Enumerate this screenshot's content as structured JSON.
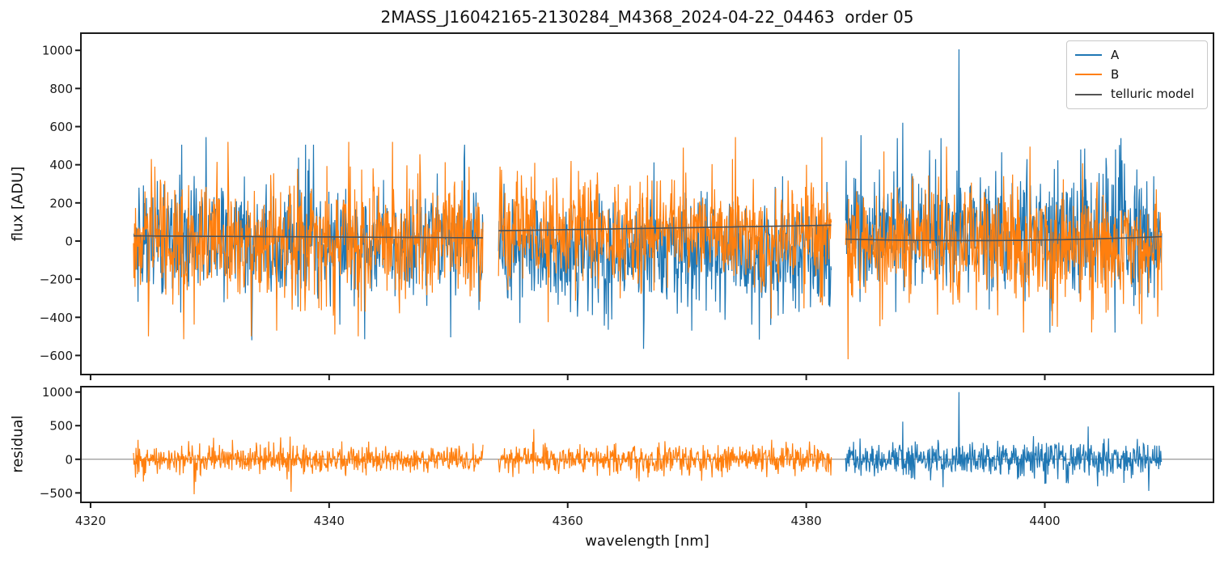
{
  "figure": {
    "background": "#ffffff"
  },
  "chart_data": {
    "type": "line",
    "title": "2MASS_J16042165-2130284_M4368_2024-04-22_04463  order 05",
    "xlabel": "wavelength [nm]",
    "xlim": [
      4319.19,
      4414.14
    ],
    "xticks": [
      {
        "v": 4320,
        "label": "4320"
      },
      {
        "v": 4340,
        "label": "4340"
      },
      {
        "v": 4360,
        "label": "4360"
      },
      {
        "v": 4380,
        "label": "4380"
      },
      {
        "v": 4400,
        "label": "4400"
      }
    ],
    "colors": {
      "A": "#1f77b4",
      "B": "#ff7f0e",
      "model": "#545454",
      "axis": "#1a1a1a",
      "zero_line": "#7f7f7f"
    },
    "legend": {
      "position": "upper right",
      "items": [
        {
          "label": "A",
          "color": "#1f77b4"
        },
        {
          "label": "B",
          "color": "#ff7f0e"
        },
        {
          "label": "telluric model",
          "color": "#545454"
        }
      ]
    },
    "panels": [
      {
        "name": "flux",
        "ylabel": "flux [ADU]",
        "ylim": [
          -700,
          1090
        ],
        "yticks": [
          {
            "v": 1000,
            "label": "1000"
          },
          {
            "v": 800,
            "label": "800"
          },
          {
            "v": 600,
            "label": "600"
          },
          {
            "v": 400,
            "label": "400"
          },
          {
            "v": 200,
            "label": "200"
          },
          {
            "v": 0,
            "label": "0"
          },
          {
            "v": -200,
            "label": "−200"
          },
          {
            "v": -400,
            "label": "−400"
          },
          {
            "v": -600,
            "label": "−600"
          }
        ],
        "zero_line": false
      },
      {
        "name": "residual",
        "ylabel": "residual",
        "ylim": [
          -640,
          1080
        ],
        "yticks": [
          {
            "v": 1000,
            "label": "1000"
          },
          {
            "v": 500,
            "label": "500"
          },
          {
            "v": 0,
            "label": "0"
          },
          {
            "v": -500,
            "label": "−500"
          }
        ],
        "zero_line": true
      }
    ],
    "noise": {
      "seed": 20240422,
      "points_per_nm": 24,
      "heavy_tail_prob": 0.045,
      "heavy_tail_scale": 1.9
    },
    "segments": [
      {
        "x_range": [
          4323.6,
          4352.9
        ],
        "A": {
          "offset": -5,
          "sigma": 145
        },
        "B": {
          "offset": 10,
          "sigma": 150
        },
        "model_points": [
          27,
          22,
          17
        ],
        "residual": {
          "series": "B",
          "offset": 0,
          "sigma": 100
        },
        "flux_spikes": [
          {
            "series": "B",
            "x": 4325.1,
            "y": 430
          },
          {
            "series": "B",
            "x": 4327.8,
            "y": -515
          },
          {
            "series": "A",
            "x": 4329.7,
            "y": 545
          },
          {
            "series": "B",
            "x": 4330.6,
            "y": 415
          },
          {
            "series": "A",
            "x": 4333.5,
            "y": -520
          },
          {
            "series": "B",
            "x": 4335.6,
            "y": -470
          },
          {
            "series": "A",
            "x": 4338.3,
            "y": 430
          },
          {
            "series": "B",
            "x": 4340.5,
            "y": -490
          },
          {
            "series": "B",
            "x": 4347.6,
            "y": 455
          },
          {
            "series": "A",
            "x": 4350.2,
            "y": -505
          }
        ],
        "residual_spikes": [
          {
            "x": 4328.7,
            "y": -520
          },
          {
            "x": 4330.3,
            "y": 320
          }
        ]
      },
      {
        "x_range": [
          4354.2,
          4382.1
        ],
        "A": {
          "offset": -55,
          "sigma": 140
        },
        "B": {
          "offset": 35,
          "sigma": 135
        },
        "model_points": [
          54,
          68,
          83
        ],
        "residual": {
          "series": "B",
          "offset": 0,
          "sigma": 105
        },
        "flux_spikes": [
          {
            "series": "A",
            "x": 4356.0,
            "y": -430
          },
          {
            "series": "B",
            "x": 4360.3,
            "y": 420
          },
          {
            "series": "A",
            "x": 4363.4,
            "y": -465
          },
          {
            "series": "B",
            "x": 4369.7,
            "y": 490
          },
          {
            "series": "B",
            "x": 4373.8,
            "y": 430
          },
          {
            "series": "A",
            "x": 4377.0,
            "y": -440
          },
          {
            "series": "B",
            "x": 4380.0,
            "y": 400
          }
        ],
        "residual_spikes": [
          {
            "x": 4366.0,
            "y": -330
          }
        ]
      },
      {
        "x_range": [
          4383.3,
          4409.8
        ],
        "A": {
          "offset": 30,
          "sigma": 155
        },
        "B": {
          "offset": -15,
          "sigma": 150
        },
        "model_points": [
          10,
          3,
          23
        ],
        "residual": {
          "series": "A",
          "offset": 0,
          "sigma": 130
        },
        "flux_spikes": [
          {
            "series": "B",
            "x": 4383.5,
            "y": -620
          },
          {
            "series": "A",
            "x": 4384.6,
            "y": 555
          },
          {
            "series": "B",
            "x": 4386.5,
            "y": 470
          },
          {
            "series": "A",
            "x": 4388.1,
            "y": 620
          },
          {
            "series": "A",
            "x": 4392.8,
            "y": 1005
          },
          {
            "series": "A",
            "x": 4396.4,
            "y": 465
          },
          {
            "series": "B",
            "x": 4398.2,
            "y": -480
          },
          {
            "series": "A",
            "x": 4403.0,
            "y": 480
          },
          {
            "series": "A",
            "x": 4406.4,
            "y": 540
          }
        ],
        "residual_spikes": [
          {
            "x": 4388.1,
            "y": 560
          },
          {
            "x": 4392.8,
            "y": 1000
          },
          {
            "x": 4408.7,
            "y": -470
          }
        ]
      }
    ]
  }
}
